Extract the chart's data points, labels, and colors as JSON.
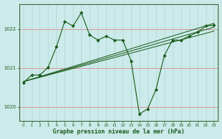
{
  "bg_color": "#cceaea",
  "line_color": "#1a5c1a",
  "marker_color": "#1a5c1a",
  "title": "Graphe pression niveau de la mer (hPa)",
  "xlim": [
    -0.5,
    23.5
  ],
  "ylim": [
    1019.65,
    1022.65
  ],
  "yticks": [
    1020,
    1021,
    1022
  ],
  "xticks": [
    0,
    1,
    2,
    3,
    4,
    5,
    6,
    7,
    8,
    9,
    10,
    11,
    12,
    13,
    14,
    15,
    16,
    17,
    18,
    19,
    20,
    21,
    22,
    23
  ],
  "xticklabels": [
    "0",
    "1",
    "2",
    "3",
    "4",
    "5",
    "6",
    "7",
    "8",
    "9",
    "10",
    "11",
    "12",
    "13",
    "14",
    "15",
    "16",
    "17",
    "18",
    "19",
    "20",
    "21",
    "22",
    "23"
  ],
  "series_plain": [
    {
      "x": [
        0,
        23
      ],
      "y": [
        1020.65,
        1021.95
      ]
    },
    {
      "x": [
        0,
        23
      ],
      "y": [
        1020.65,
        1022.05
      ]
    },
    {
      "x": [
        0,
        23
      ],
      "y": [
        1020.65,
        1022.15
      ]
    }
  ],
  "series_main": {
    "x": [
      0,
      1,
      2,
      3,
      4,
      5,
      6,
      7,
      8,
      9,
      10,
      11,
      12,
      13,
      14,
      15,
      16,
      17,
      18,
      19,
      20,
      21,
      22,
      23
    ],
    "y": [
      1020.62,
      1020.82,
      1020.82,
      1021.02,
      1021.55,
      1022.2,
      1022.08,
      1022.42,
      1021.85,
      1021.72,
      1021.82,
      1021.72,
      1021.72,
      1021.18,
      1019.82,
      1019.95,
      1020.45,
      1021.32,
      1021.72,
      1021.72,
      1021.82,
      1021.92,
      1022.08,
      1022.1
    ]
  }
}
